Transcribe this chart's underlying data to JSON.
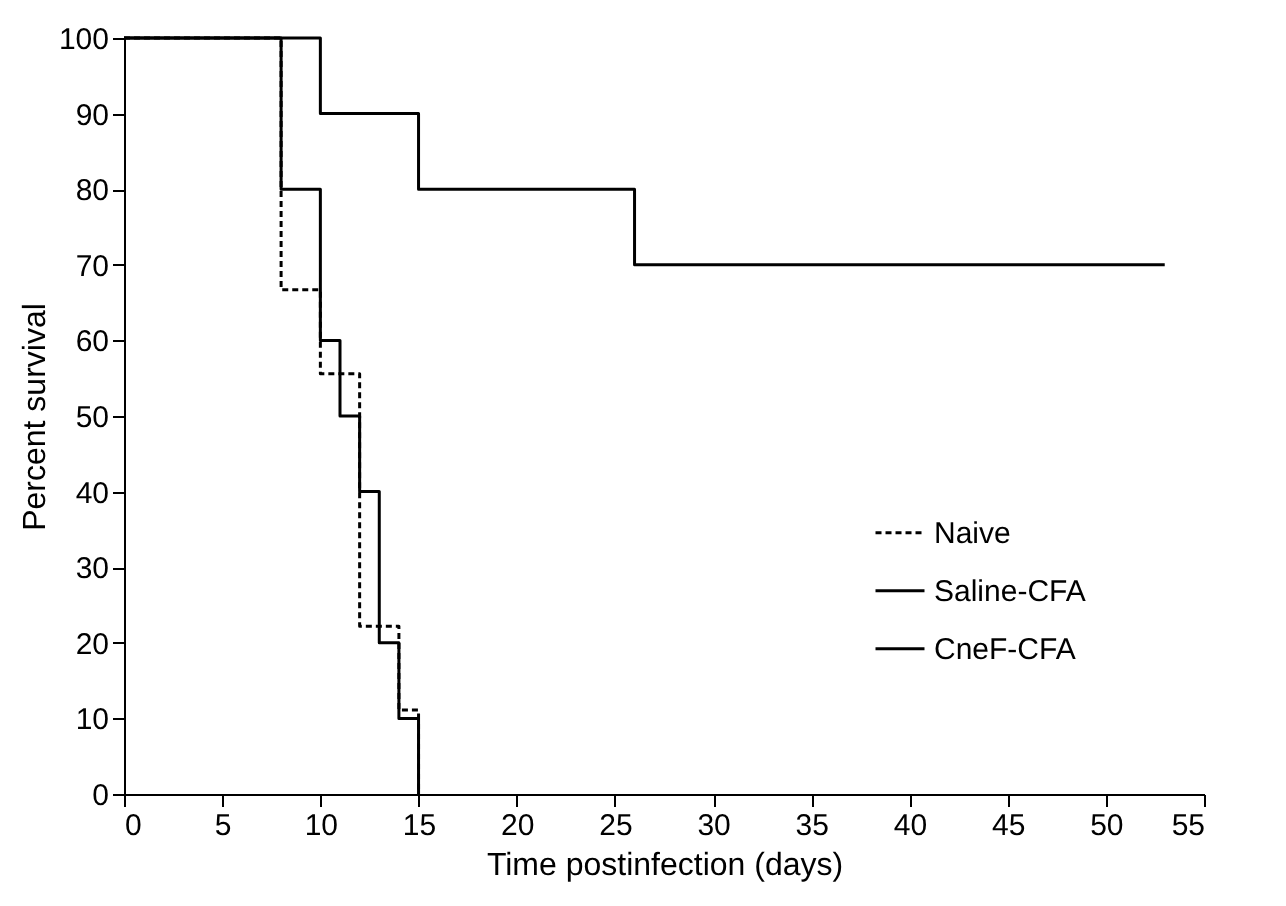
{
  "chart_data": {
    "type": "step",
    "xlabel": "Time postinfection (days)",
    "ylabel": "Percent survival",
    "xlim": [
      0,
      55
    ],
    "xticks": [
      0,
      5,
      10,
      15,
      20,
      25,
      30,
      35,
      40,
      45,
      50,
      55
    ],
    "ylim": [
      0,
      100
    ],
    "yticks": [
      0,
      10,
      20,
      30,
      40,
      50,
      60,
      70,
      80,
      90,
      100
    ],
    "grid": false,
    "legend": "right",
    "marker": "none",
    "series": [
      {
        "name": "Naive",
        "color": "#000000",
        "line_style": "dotted",
        "x": [
          0,
          8,
          10,
          12,
          14,
          15
        ],
        "values": [
          100,
          66.7,
          55.6,
          22.2,
          11.1,
          0
        ]
      },
      {
        "name": "Saline-CFA",
        "color": "#000000",
        "line_style": "solid",
        "x": [
          0,
          8,
          10,
          11,
          12,
          13,
          14,
          15
        ],
        "values": [
          100,
          80,
          60,
          50,
          40,
          20,
          10,
          0
        ]
      },
      {
        "name": "CneF-CFA",
        "color": "#000000",
        "line_style": "solid",
        "x": [
          0,
          10,
          15,
          26,
          53
        ],
        "values": [
          100,
          90,
          80,
          70,
          70
        ]
      }
    ]
  }
}
